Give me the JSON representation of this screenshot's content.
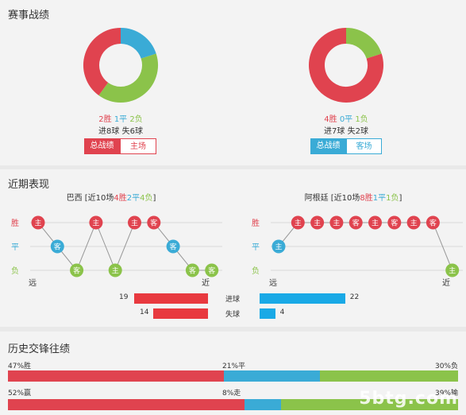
{
  "colors": {
    "win": "#e0434f",
    "draw": "#3aabd6",
    "loss": "#8bc34a",
    "goal_bar": "#19a9e6"
  },
  "record": {
    "title": "赛事战绩",
    "left": {
      "wins_label": "2胜",
      "draws_label": "1平",
      "losses_label": "2负",
      "wins": 2,
      "draws": 1,
      "losses": 2,
      "goals_line": "进8球  失6球",
      "tab_active": "总战绩",
      "tab_other": "主场"
    },
    "right": {
      "wins_label": "4胜",
      "draws_label": "0平",
      "losses_label": "1负",
      "wins": 4,
      "draws": 0,
      "losses": 1,
      "goals_line": "进7球  失2球",
      "tab_active": "总战绩",
      "tab_other": "客场"
    }
  },
  "recent": {
    "title": "近期表现",
    "row_labels": [
      "胜",
      "平",
      "负"
    ],
    "far_label": "远",
    "near_label": "近",
    "left": {
      "heading_prefix": "巴西 [近10场",
      "wins_txt": "4胜",
      "draws_txt": "2平",
      "losses_txt": "4负",
      "heading_suffix": "]",
      "matches": [
        {
          "r": "W",
          "venue": "主"
        },
        {
          "r": "D",
          "venue": "客"
        },
        {
          "r": "L",
          "venue": "客"
        },
        {
          "r": "W",
          "venue": "主"
        },
        {
          "r": "L",
          "venue": "主"
        },
        {
          "r": "W",
          "venue": "主"
        },
        {
          "r": "W",
          "venue": "客"
        },
        {
          "r": "D",
          "venue": "客"
        },
        {
          "r": "L",
          "venue": "客"
        },
        {
          "r": "L",
          "venue": "客"
        }
      ]
    },
    "right": {
      "heading_prefix": "阿根廷 [近10场",
      "wins_txt": "8胜",
      "draws_txt": "1平",
      "losses_txt": "1负",
      "heading_suffix": "]",
      "matches": [
        {
          "r": "D",
          "venue": "主"
        },
        {
          "r": "W",
          "venue": "主"
        },
        {
          "r": "W",
          "venue": "主"
        },
        {
          "r": "W",
          "venue": "主"
        },
        {
          "r": "W",
          "venue": "客"
        },
        {
          "r": "W",
          "venue": "主"
        },
        {
          "r": "W",
          "venue": "客"
        },
        {
          "r": "W",
          "venue": "主"
        },
        {
          "r": "W",
          "venue": "客"
        },
        {
          "r": "L",
          "venue": "主"
        }
      ]
    },
    "goals": {
      "label": "进球",
      "left": "19",
      "right": "22",
      "left_val": 19,
      "right_val": 22
    },
    "conceded": {
      "label": "失球",
      "left": "14",
      "right": "4",
      "left_val": 14,
      "right_val": 4
    }
  },
  "history": {
    "title": "历史交锋往绩",
    "row1": {
      "left": "47%胜",
      "mid": "21%平",
      "right": "30%负",
      "a": 47,
      "b": 21,
      "c": 30
    },
    "row2": {
      "left": "52%赢",
      "mid": "8%走",
      "right": "39%输",
      "a": 52,
      "b": 8,
      "c": 39
    }
  },
  "watermark": "5btg.com"
}
